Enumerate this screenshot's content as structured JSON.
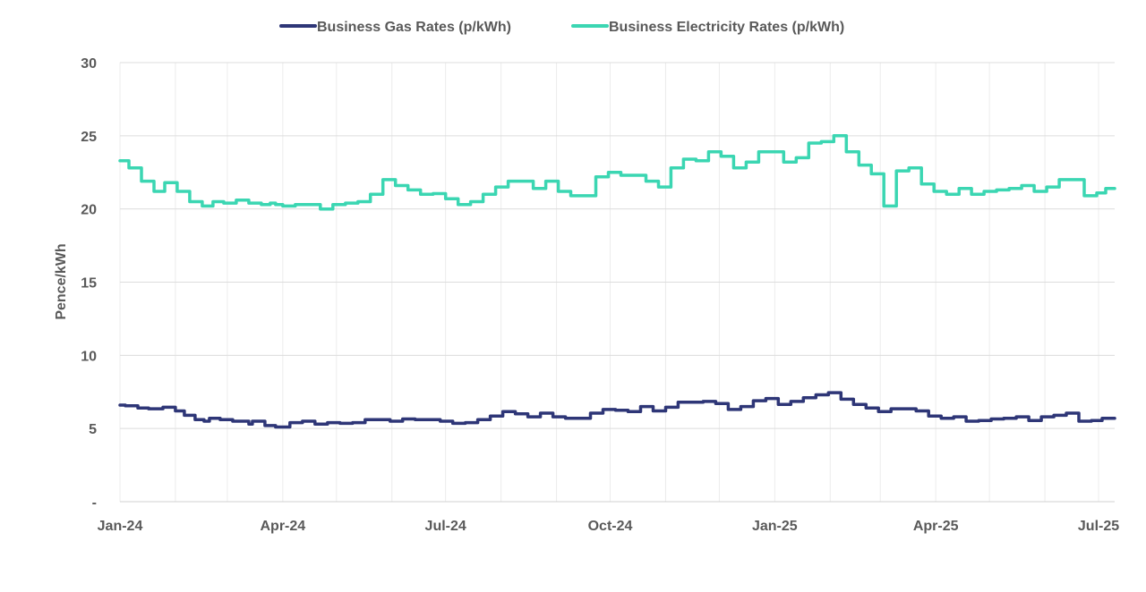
{
  "chart_data": {
    "type": "line",
    "title": "",
    "xlabel": "",
    "ylabel": "Pence/kWh",
    "ylim": [
      0,
      30
    ],
    "y_ticks": [
      {
        "value": 0,
        "label": "-"
      },
      {
        "value": 5,
        "label": "5"
      },
      {
        "value": 10,
        "label": "10"
      },
      {
        "value": 15,
        "label": "15"
      },
      {
        "value": 20,
        "label": "20"
      },
      {
        "value": 25,
        "label": "25"
      },
      {
        "value": 30,
        "label": "30"
      }
    ],
    "x_range": [
      "2024-01-01",
      "2025-07-10"
    ],
    "x_ticks": [
      {
        "date": "2024-01-01",
        "label": "Jan-24"
      },
      {
        "date": "2024-04-01",
        "label": "Apr-24"
      },
      {
        "date": "2024-07-01",
        "label": "Jul-24"
      },
      {
        "date": "2024-10-01",
        "label": "Oct-24"
      },
      {
        "date": "2025-01-01",
        "label": "Jan-25"
      },
      {
        "date": "2025-04-01",
        "label": "Apr-25"
      },
      {
        "date": "2025-07-01",
        "label": "Jul-25"
      }
    ],
    "grid": {
      "horizontal": true,
      "vertical": "monthly"
    },
    "legend_position": "top",
    "step": true,
    "series": [
      {
        "name": "Business Gas Rates (p/kWh)",
        "color": "#2E3677",
        "points": [
          [
            "2024-01-01",
            6.6
          ],
          [
            "2024-01-04",
            6.55
          ],
          [
            "2024-01-11",
            6.4
          ],
          [
            "2024-01-17",
            6.35
          ],
          [
            "2024-01-25",
            6.45
          ],
          [
            "2024-02-01",
            6.2
          ],
          [
            "2024-02-06",
            5.9
          ],
          [
            "2024-02-12",
            5.6
          ],
          [
            "2024-02-17",
            5.5
          ],
          [
            "2024-02-20",
            5.7
          ],
          [
            "2024-02-26",
            5.6
          ],
          [
            "2024-03-04",
            5.5
          ],
          [
            "2024-03-13",
            5.3
          ],
          [
            "2024-03-15",
            5.5
          ],
          [
            "2024-03-22",
            5.2
          ],
          [
            "2024-03-28",
            5.1
          ],
          [
            "2024-04-05",
            5.4
          ],
          [
            "2024-04-12",
            5.5
          ],
          [
            "2024-04-19",
            5.3
          ],
          [
            "2024-04-26",
            5.4
          ],
          [
            "2024-05-03",
            5.35
          ],
          [
            "2024-05-10",
            5.4
          ],
          [
            "2024-05-17",
            5.6
          ],
          [
            "2024-05-31",
            5.5
          ],
          [
            "2024-06-07",
            5.65
          ],
          [
            "2024-06-14",
            5.6
          ],
          [
            "2024-06-28",
            5.5
          ],
          [
            "2024-07-05",
            5.35
          ],
          [
            "2024-07-12",
            5.4
          ],
          [
            "2024-07-19",
            5.6
          ],
          [
            "2024-07-26",
            5.85
          ],
          [
            "2024-08-02",
            6.15
          ],
          [
            "2024-08-09",
            6.0
          ],
          [
            "2024-08-16",
            5.8
          ],
          [
            "2024-08-23",
            6.05
          ],
          [
            "2024-08-30",
            5.8
          ],
          [
            "2024-09-06",
            5.7
          ],
          [
            "2024-09-20",
            6.05
          ],
          [
            "2024-09-27",
            6.3
          ],
          [
            "2024-10-04",
            6.25
          ],
          [
            "2024-10-11",
            6.15
          ],
          [
            "2024-10-18",
            6.5
          ],
          [
            "2024-10-25",
            6.2
          ],
          [
            "2024-11-01",
            6.45
          ],
          [
            "2024-11-08",
            6.8
          ],
          [
            "2024-11-22",
            6.85
          ],
          [
            "2024-11-29",
            6.7
          ],
          [
            "2024-12-06",
            6.3
          ],
          [
            "2024-12-13",
            6.5
          ],
          [
            "2024-12-20",
            6.9
          ],
          [
            "2024-12-27",
            7.05
          ],
          [
            "2025-01-03",
            6.65
          ],
          [
            "2025-01-10",
            6.85
          ],
          [
            "2025-01-17",
            7.1
          ],
          [
            "2025-01-24",
            7.3
          ],
          [
            "2025-01-31",
            7.45
          ],
          [
            "2025-02-07",
            7.0
          ],
          [
            "2025-02-14",
            6.65
          ],
          [
            "2025-02-21",
            6.4
          ],
          [
            "2025-02-28",
            6.15
          ],
          [
            "2025-03-07",
            6.35
          ],
          [
            "2025-03-21",
            6.2
          ],
          [
            "2025-03-28",
            5.85
          ],
          [
            "2025-04-04",
            5.7
          ],
          [
            "2025-04-11",
            5.8
          ],
          [
            "2025-04-18",
            5.5
          ],
          [
            "2025-04-25",
            5.55
          ],
          [
            "2025-05-02",
            5.65
          ],
          [
            "2025-05-09",
            5.7
          ],
          [
            "2025-05-16",
            5.8
          ],
          [
            "2025-05-23",
            5.55
          ],
          [
            "2025-05-30",
            5.8
          ],
          [
            "2025-06-06",
            5.9
          ],
          [
            "2025-06-13",
            6.05
          ],
          [
            "2025-06-20",
            5.5
          ],
          [
            "2025-06-27",
            5.55
          ],
          [
            "2025-07-03",
            5.7
          ],
          [
            "2025-07-10",
            5.7
          ]
        ]
      },
      {
        "name": "Business Electricity Rates (p/kWh)",
        "color": "#3BD6B2",
        "points": [
          [
            "2024-01-01",
            23.3
          ],
          [
            "2024-01-06",
            22.8
          ],
          [
            "2024-01-13",
            21.9
          ],
          [
            "2024-01-20",
            21.2
          ],
          [
            "2024-01-26",
            21.8
          ],
          [
            "2024-02-02",
            21.2
          ],
          [
            "2024-02-09",
            20.5
          ],
          [
            "2024-02-16",
            20.2
          ],
          [
            "2024-02-22",
            20.5
          ],
          [
            "2024-02-28",
            20.4
          ],
          [
            "2024-03-06",
            20.6
          ],
          [
            "2024-03-13",
            20.4
          ],
          [
            "2024-03-20",
            20.3
          ],
          [
            "2024-03-25",
            20.4
          ],
          [
            "2024-03-28",
            20.3
          ],
          [
            "2024-04-01",
            20.2
          ],
          [
            "2024-04-08",
            20.3
          ],
          [
            "2024-04-22",
            20.0
          ],
          [
            "2024-04-29",
            20.3
          ],
          [
            "2024-05-06",
            20.4
          ],
          [
            "2024-05-13",
            20.5
          ],
          [
            "2024-05-20",
            21.0
          ],
          [
            "2024-05-27",
            22.0
          ],
          [
            "2024-06-03",
            21.6
          ],
          [
            "2024-06-10",
            21.3
          ],
          [
            "2024-06-17",
            21.0
          ],
          [
            "2024-06-24",
            21.05
          ],
          [
            "2024-07-01",
            20.7
          ],
          [
            "2024-07-08",
            20.3
          ],
          [
            "2024-07-15",
            20.5
          ],
          [
            "2024-07-22",
            21.0
          ],
          [
            "2024-07-29",
            21.5
          ],
          [
            "2024-08-05",
            21.9
          ],
          [
            "2024-08-19",
            21.4
          ],
          [
            "2024-08-26",
            21.9
          ],
          [
            "2024-09-02",
            21.2
          ],
          [
            "2024-09-09",
            20.9
          ],
          [
            "2024-09-23",
            22.2
          ],
          [
            "2024-09-30",
            22.5
          ],
          [
            "2024-10-07",
            22.3
          ],
          [
            "2024-10-21",
            21.9
          ],
          [
            "2024-10-28",
            21.5
          ],
          [
            "2024-11-04",
            22.8
          ],
          [
            "2024-11-11",
            23.4
          ],
          [
            "2024-11-18",
            23.3
          ],
          [
            "2024-11-25",
            23.9
          ],
          [
            "2024-12-02",
            23.6
          ],
          [
            "2024-12-09",
            22.8
          ],
          [
            "2024-12-16",
            23.2
          ],
          [
            "2024-12-23",
            23.9
          ],
          [
            "2025-01-06",
            23.2
          ],
          [
            "2025-01-13",
            23.5
          ],
          [
            "2025-01-20",
            24.5
          ],
          [
            "2025-01-27",
            24.6
          ],
          [
            "2025-02-03",
            25.0
          ],
          [
            "2025-02-10",
            23.9
          ],
          [
            "2025-02-17",
            23.0
          ],
          [
            "2025-02-24",
            22.4
          ],
          [
            "2025-03-03",
            20.2
          ],
          [
            "2025-03-10",
            22.6
          ],
          [
            "2025-03-17",
            22.8
          ],
          [
            "2025-03-24",
            21.7
          ],
          [
            "2025-03-31",
            21.2
          ],
          [
            "2025-04-07",
            21.0
          ],
          [
            "2025-04-14",
            21.4
          ],
          [
            "2025-04-21",
            21.0
          ],
          [
            "2025-04-28",
            21.2
          ],
          [
            "2025-05-05",
            21.3
          ],
          [
            "2025-05-12",
            21.4
          ],
          [
            "2025-05-19",
            21.6
          ],
          [
            "2025-05-26",
            21.2
          ],
          [
            "2025-06-02",
            21.5
          ],
          [
            "2025-06-09",
            22.0
          ],
          [
            "2025-06-23",
            20.9
          ],
          [
            "2025-06-30",
            21.1
          ],
          [
            "2025-07-05",
            21.4
          ],
          [
            "2025-07-10",
            21.4
          ]
        ]
      }
    ]
  }
}
